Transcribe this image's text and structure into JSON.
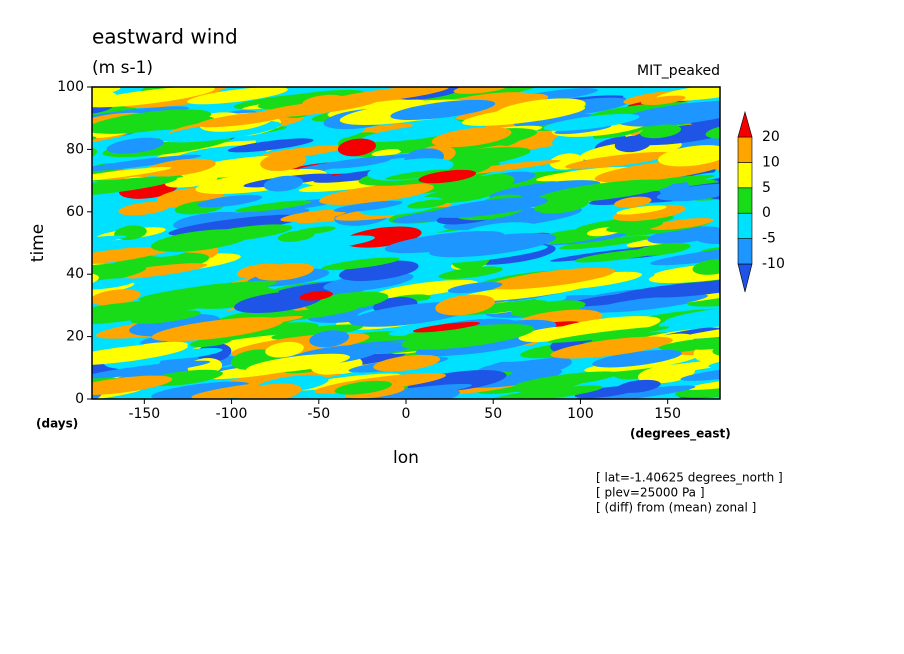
{
  "chart_data": {
    "type": "contour",
    "title": "eastward wind",
    "subtitle": "(m s-1)",
    "model_label": "MIT_peaked",
    "x_label": "lon",
    "y_label": "time",
    "y_unit_label": "(days)",
    "x_unit_label": "(degrees_east)",
    "xlim": [
      -180,
      180
    ],
    "ylim": [
      0,
      100
    ],
    "xticks": [
      -150,
      -100,
      -50,
      0,
      50,
      100,
      150
    ],
    "yticks": [
      0,
      20,
      40,
      60,
      80,
      100
    ],
    "levels": [
      -10,
      -5,
      0,
      5,
      10,
      20
    ],
    "colors": [
      "#1e55e6",
      "#1e96ff",
      "#00e1ff",
      "#19dc19",
      "#ffff00",
      "#ffa500",
      "#f50000"
    ],
    "notes": [
      "[ lat=-1.40625 degrees_north ]",
      "[ plev=25000 Pa ]",
      "[ (diff) from (mean) zonal ]"
    ]
  }
}
